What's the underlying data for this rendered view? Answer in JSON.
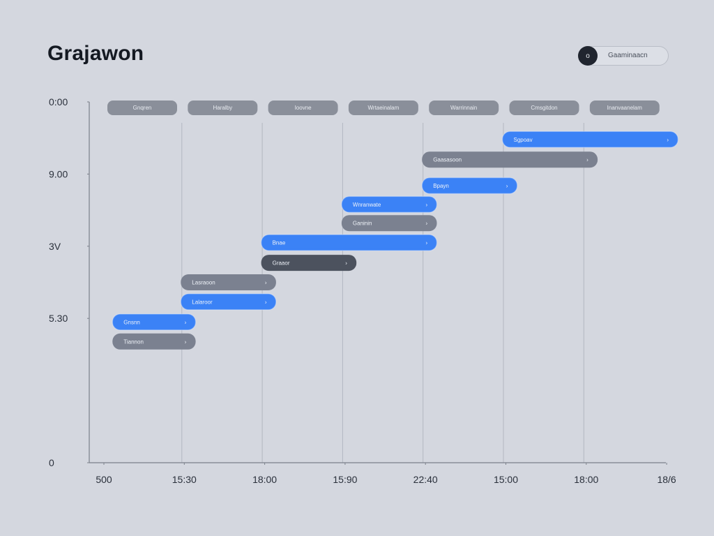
{
  "header": {
    "title": "Grajawon",
    "toggle_icon": "o",
    "toggle_label": "Gaaminaacn"
  },
  "colors": {
    "background": "#d4d7df",
    "blue": "#3b82f6",
    "gray": "#7b8190",
    "dark": "#4c525e",
    "column_header": "#8a8f9a",
    "axis": "#7b808a"
  },
  "chart_data": {
    "type": "gantt",
    "title": "Grajawon",
    "column_headers": [
      "Gnqren",
      "Haralby",
      "Ioovne",
      "Wrtaeinalam",
      "Warrinnain",
      "Cmsgitdon",
      "Inanvaanelam"
    ],
    "x_tick_labels": [
      "500",
      "15:30",
      "18:00",
      "15:90",
      "22:40",
      "15:00",
      "18:00",
      "18/6"
    ],
    "y_tick_labels": [
      {
        "label": "0:00",
        "level": 5
      },
      {
        "label": "9.00",
        "level": 4
      },
      {
        "label": "3V",
        "level": 3
      },
      {
        "label": "5.30",
        "level": 2
      },
      {
        "label": "0",
        "level": 0
      }
    ],
    "y_range": [
      0,
      5
    ],
    "bars": [
      {
        "label": "Sgpoav",
        "start": 5,
        "end": 7.15,
        "level": 4.48,
        "color": "blue"
      },
      {
        "label": "Gaasasoon",
        "start": 4,
        "end": 6.15,
        "level": 4.2,
        "color": "gray"
      },
      {
        "label": "Bpayn",
        "start": 4,
        "end": 5.15,
        "level": 3.84,
        "color": "blue"
      },
      {
        "label": "Wnranwate",
        "start": 3,
        "end": 4.15,
        "level": 3.58,
        "color": "blue"
      },
      {
        "label": "Ganinin",
        "start": 3,
        "end": 4.15,
        "level": 3.32,
        "color": "gray"
      },
      {
        "label": "Bnae",
        "start": 2,
        "end": 4.15,
        "level": 3.05,
        "color": "blue"
      },
      {
        "label": "Graaor",
        "start": 2,
        "end": 3.15,
        "level": 2.77,
        "color": "dark"
      },
      {
        "label": "Lasraoon",
        "start": 1,
        "end": 2.15,
        "level": 2.5,
        "color": "gray"
      },
      {
        "label": "Lalaroor",
        "start": 1,
        "end": 2.15,
        "level": 2.23,
        "color": "blue"
      },
      {
        "label": "Gnsnn",
        "start": 0.15,
        "end": 1.15,
        "level": 1.95,
        "color": "blue"
      },
      {
        "label": "Tiannon",
        "start": 0.15,
        "end": 1.15,
        "level": 1.68,
        "color": "gray"
      }
    ],
    "grid": true,
    "legend": "none"
  }
}
